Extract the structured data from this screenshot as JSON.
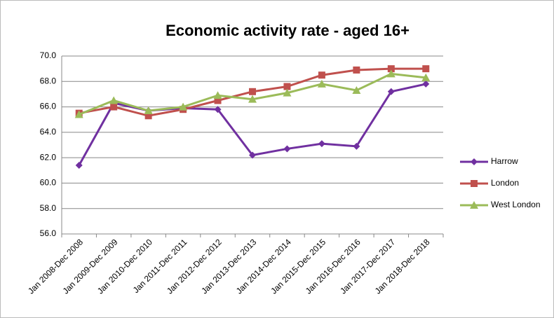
{
  "chart_data": {
    "type": "line",
    "title": "Economic activity rate - aged 16+",
    "categories": [
      "Jan 2008-Dec 2008",
      "Jan 2009-Dec 2009",
      "Jan 2010-Dec 2010",
      "Jan 2011-Dec 2011",
      "Jan 2012-Dec 2012",
      "Jan 2013-Dec 2013",
      "Jan 2014-Dec 2014",
      "Jan 2015-Dec 2015",
      "Jan 2016-Dec 2016",
      "Jan 2017-Dec 2017",
      "Jan 2018-Dec 2018"
    ],
    "series": [
      {
        "name": "Harrow",
        "color": "#7030a0",
        "marker": "diamond",
        "values": [
          61.4,
          66.3,
          65.7,
          65.9,
          65.8,
          62.2,
          62.7,
          63.1,
          62.9,
          67.2,
          67.8
        ]
      },
      {
        "name": "London",
        "color": "#c0504d",
        "marker": "square",
        "values": [
          65.5,
          66.0,
          65.3,
          65.8,
          66.5,
          67.2,
          67.6,
          68.5,
          68.9,
          69.0,
          69.0
        ]
      },
      {
        "name": "West London",
        "color": "#9bbb59",
        "marker": "triangle",
        "values": [
          65.4,
          66.5,
          65.7,
          66.0,
          66.9,
          66.6,
          67.1,
          67.8,
          67.3,
          68.6,
          68.3
        ]
      }
    ],
    "ylim": [
      56,
      70
    ],
    "yticks": [
      {
        "value": 56,
        "label": "56.0"
      },
      {
        "value": 58,
        "label": "58.0"
      },
      {
        "value": 60,
        "label": "60.0"
      },
      {
        "value": 62,
        "label": "62.0"
      },
      {
        "value": 64,
        "label": "64.0"
      },
      {
        "value": 66,
        "label": "66.0"
      },
      {
        "value": 68,
        "label": "68.0"
      },
      {
        "value": 70,
        "label": "70.0"
      }
    ],
    "grid": true,
    "legend": "right"
  }
}
